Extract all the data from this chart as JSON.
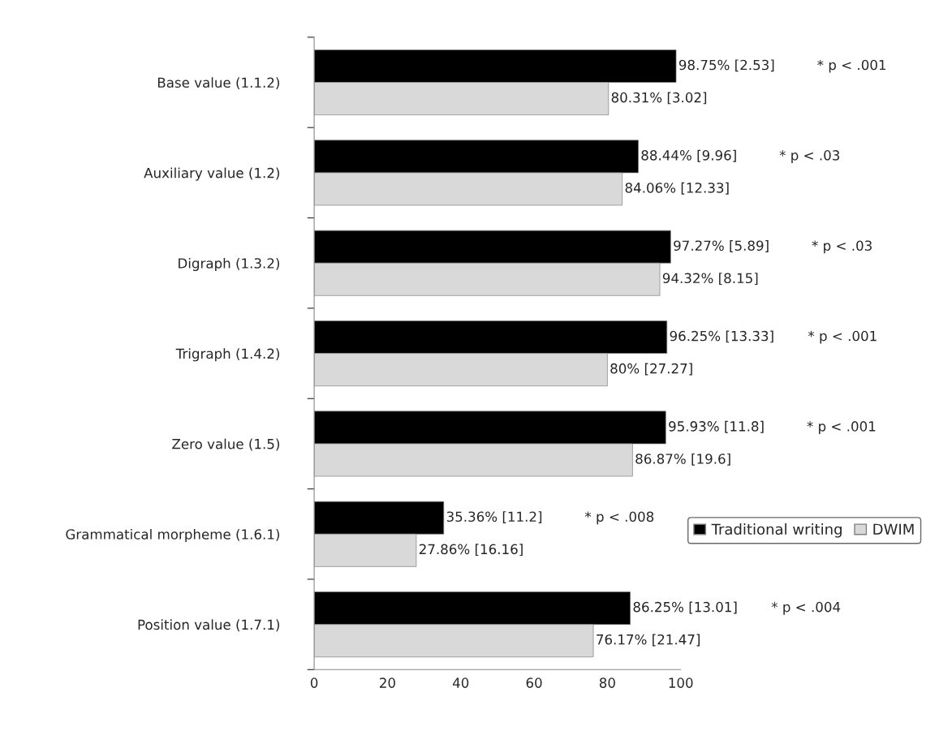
{
  "chart_data": {
    "type": "bar",
    "orientation": "horizontal",
    "categories": [
      "Base value (1.1.2)",
      "Auxiliary value (1.2)",
      "Digraph (1.3.2)",
      "Trigraph (1.4.2)",
      "Zero value (1.5)",
      "Grammatical morpheme (1.6.1)",
      "Position value (1.7.1)"
    ],
    "series": [
      {
        "name": "Traditional writing",
        "color": "#000000",
        "values": [
          98.75,
          88.44,
          97.27,
          96.25,
          95.93,
          35.36,
          86.25
        ],
        "value_labels": [
          "98.75% [2.53]",
          "88.44% [9.96]",
          "97.27% [5.89]",
          "96.25% [13.33]",
          "95.93% [11.8]",
          "35.36% [11.2]",
          "86.25% [13.01]"
        ]
      },
      {
        "name": "DWIM",
        "color": "#d9d9d9",
        "values": [
          80.31,
          84.06,
          94.32,
          80,
          86.87,
          27.86,
          76.17
        ],
        "value_labels": [
          "80.31% [3.02]",
          "84.06% [12.33]",
          "94.32% [8.15]",
          "80% [27.27]",
          "86.87% [19.6]",
          "27.86% [16.16]",
          "76.17% [21.47]"
        ]
      }
    ],
    "annotations": [
      "* p < .001",
      "* p < .03",
      "* p < .03",
      "* p < .001",
      "* p < .001",
      "* p < .008",
      "* p < .004"
    ],
    "xlim": [
      0,
      100
    ],
    "xticks": [
      0,
      20,
      40,
      60,
      80,
      100
    ],
    "grid": false,
    "legend": "right"
  }
}
